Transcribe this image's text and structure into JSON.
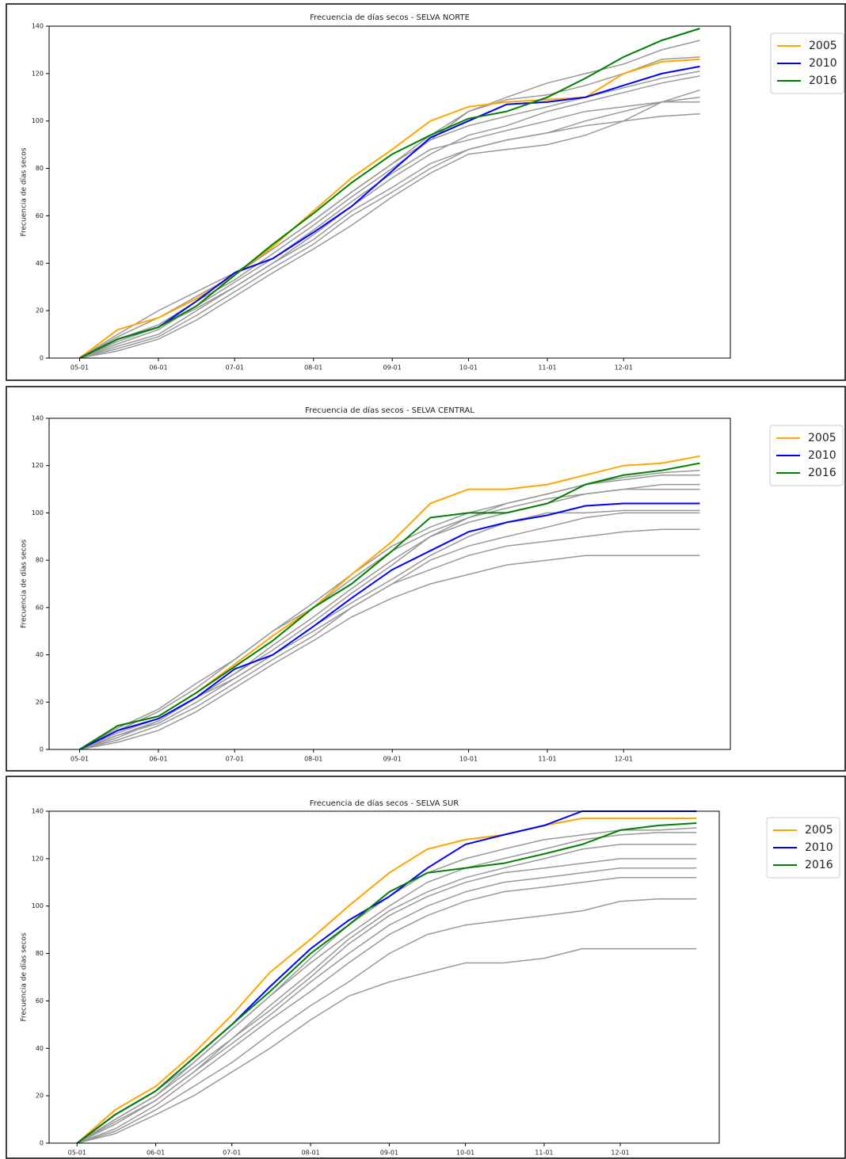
{
  "chart_data": [
    {
      "type": "line",
      "title": "Frecuencia de días secos - SELVA NORTE",
      "ylabel": "Frecuencia de días secos",
      "x": [
        0,
        15,
        31,
        46,
        61,
        76,
        92,
        107,
        123,
        138,
        153,
        168,
        184,
        199,
        214,
        229,
        244
      ],
      "xlim": [
        -12,
        256
      ],
      "xticks": [
        {
          "value": 0,
          "label": "05-01"
        },
        {
          "value": 31,
          "label": "06-01"
        },
        {
          "value": 61,
          "label": "07-01"
        },
        {
          "value": 92,
          "label": "08-01"
        },
        {
          "value": 123,
          "label": "09-01"
        },
        {
          "value": 153,
          "label": "10-01"
        },
        {
          "value": 184,
          "label": "11-01"
        },
        {
          "value": 214,
          "label": "12-01"
        }
      ],
      "ylim": [
        0,
        140
      ],
      "yticks": [
        0,
        20,
        40,
        60,
        80,
        100,
        120,
        140
      ],
      "grid": false,
      "legend": "right",
      "series": [
        {
          "color": "#999999",
          "values": [
            0,
            8,
            14,
            24,
            33,
            44,
            56,
            68,
            80,
            92,
            104,
            109,
            111,
            115,
            120,
            126,
            127
          ]
        },
        {
          "color": "#999999",
          "values": [
            0,
            5,
            10,
            20,
            30,
            40,
            50,
            62,
            72,
            82,
            88,
            92,
            95,
            98,
            100,
            102,
            103
          ]
        },
        {
          "color": "#999999",
          "values": [
            0,
            6,
            12,
            22,
            32,
            42,
            54,
            66,
            78,
            88,
            92,
            96,
            100,
            104,
            106,
            108,
            110
          ]
        },
        {
          "color": "#999999",
          "values": [
            0,
            10,
            20,
            28,
            36,
            46,
            58,
            70,
            82,
            94,
            104,
            110,
            116,
            120,
            124,
            130,
            134
          ]
        },
        {
          "color": "#999999",
          "values": [
            0,
            4,
            9,
            18,
            28,
            38,
            48,
            60,
            70,
            80,
            88,
            92,
            95,
            100,
            104,
            108,
            108
          ]
        },
        {
          "color": "#999999",
          "values": [
            0,
            7,
            13,
            21,
            30,
            40,
            52,
            64,
            76,
            86,
            94,
            98,
            104,
            108,
            112,
            116,
            119
          ]
        },
        {
          "color": "#999999",
          "values": [
            0,
            9,
            17,
            26,
            35,
            46,
            58,
            70,
            82,
            92,
            98,
            102,
            106,
            110,
            114,
            118,
            121
          ]
        },
        {
          "color": "#999999",
          "values": [
            0,
            3,
            8,
            16,
            26,
            36,
            46,
            56,
            68,
            78,
            86,
            88,
            90,
            94,
            100,
            108,
            113
          ]
        },
        {
          "name": "2005",
          "color": "#ffa500",
          "values": [
            0,
            12,
            17,
            25,
            35,
            47,
            62,
            76,
            88,
            100,
            106,
            108,
            109,
            110,
            120,
            125,
            126
          ]
        },
        {
          "name": "2010",
          "color": "#0000ff",
          "values": [
            0,
            8,
            13,
            24,
            36,
            42,
            53,
            64,
            79,
            93,
            100,
            107,
            108,
            110,
            115,
            120,
            123
          ]
        },
        {
          "name": "2016",
          "color": "#008000",
          "values": [
            0,
            8,
            13,
            22,
            35,
            48,
            61,
            74,
            86,
            94,
            101,
            104,
            110,
            118,
            127,
            134,
            139
          ]
        }
      ]
    },
    {
      "type": "line",
      "title": "Frecuencia de días secos - SELVA CENTRAL",
      "ylabel": "Frecuencia de días secos",
      "x": [
        0,
        15,
        31,
        46,
        61,
        76,
        92,
        107,
        123,
        138,
        153,
        168,
        184,
        199,
        214,
        229,
        244
      ],
      "xlim": [
        -12,
        256
      ],
      "xticks": [
        {
          "value": 0,
          "label": "05-01"
        },
        {
          "value": 31,
          "label": "06-01"
        },
        {
          "value": 61,
          "label": "07-01"
        },
        {
          "value": 92,
          "label": "08-01"
        },
        {
          "value": 123,
          "label": "09-01"
        },
        {
          "value": 153,
          "label": "10-01"
        },
        {
          "value": 184,
          "label": "11-01"
        },
        {
          "value": 214,
          "label": "12-01"
        }
      ],
      "ylim": [
        0,
        140
      ],
      "yticks": [
        0,
        20,
        40,
        60,
        80,
        100,
        120,
        140
      ],
      "grid": false,
      "legend": "right",
      "series": [
        {
          "color": "#999999",
          "values": [
            0,
            8,
            16,
            26,
            38,
            50,
            62,
            74,
            86,
            94,
            100,
            104,
            108,
            112,
            115,
            117,
            118
          ]
        },
        {
          "color": "#999999",
          "values": [
            0,
            6,
            12,
            22,
            32,
            42,
            54,
            66,
            78,
            90,
            98,
            104,
            108,
            112,
            114,
            116,
            116
          ]
        },
        {
          "color": "#999999",
          "values": [
            0,
            5,
            12,
            22,
            32,
            44,
            56,
            68,
            80,
            90,
            96,
            100,
            104,
            108,
            110,
            112,
            112
          ]
        },
        {
          "color": "#999999",
          "values": [
            0,
            9,
            17,
            28,
            38,
            50,
            60,
            72,
            84,
            92,
            98,
            102,
            106,
            108,
            110,
            110,
            110
          ]
        },
        {
          "color": "#999999",
          "values": [
            0,
            6,
            11,
            20,
            30,
            40,
            52,
            62,
            72,
            82,
            90,
            96,
            100,
            100,
            101,
            101,
            101
          ]
        },
        {
          "color": "#999999",
          "values": [
            0,
            4,
            10,
            18,
            28,
            38,
            48,
            60,
            70,
            80,
            86,
            90,
            94,
            98,
            100,
            100,
            100
          ]
        },
        {
          "color": "#999999",
          "values": [
            0,
            7,
            13,
            22,
            30,
            40,
            50,
            60,
            70,
            76,
            82,
            86,
            88,
            90,
            92,
            93,
            93
          ]
        },
        {
          "color": "#999999",
          "values": [
            0,
            3,
            8,
            16,
            26,
            36,
            46,
            56,
            64,
            70,
            74,
            78,
            80,
            82,
            82,
            82,
            82
          ]
        },
        {
          "name": "2005",
          "color": "#ffa500",
          "values": [
            0,
            10,
            14,
            24,
            36,
            48,
            60,
            74,
            88,
            104,
            110,
            110,
            112,
            116,
            120,
            121,
            124
          ]
        },
        {
          "name": "2010",
          "color": "#0000ff",
          "values": [
            0,
            8,
            13,
            22,
            34,
            40,
            52,
            64,
            76,
            84,
            92,
            96,
            99,
            103,
            104,
            104,
            104
          ]
        },
        {
          "name": "2016",
          "color": "#008000",
          "values": [
            0,
            10,
            14,
            24,
            35,
            46,
            60,
            70,
            84,
            98,
            100,
            100,
            104,
            112,
            116,
            118,
            121
          ]
        }
      ]
    },
    {
      "type": "line",
      "title": "Frecuencia de días secos - SELVA SUR",
      "ylabel": "Frecuencia de días secos",
      "x": [
        0,
        15,
        31,
        46,
        61,
        76,
        92,
        107,
        123,
        138,
        153,
        168,
        184,
        199,
        214,
        229,
        244
      ],
      "xlim": [
        -11,
        253
      ],
      "xticks": [
        {
          "value": 0,
          "label": "05-01"
        },
        {
          "value": 31,
          "label": "06-01"
        },
        {
          "value": 61,
          "label": "07-01"
        },
        {
          "value": 92,
          "label": "08-01"
        },
        {
          "value": 123,
          "label": "09-01"
        },
        {
          "value": 153,
          "label": "10-01"
        },
        {
          "value": 184,
          "label": "11-01"
        },
        {
          "value": 214,
          "label": "12-01"
        }
      ],
      "ylim": [
        0,
        140
      ],
      "yticks": [
        0,
        20,
        40,
        60,
        80,
        100,
        120,
        140
      ],
      "grid": false,
      "legend": "right",
      "series": [
        {
          "color": "#999999",
          "values": [
            0,
            10,
            20,
            34,
            48,
            62,
            78,
            92,
            104,
            114,
            120,
            124,
            128,
            130,
            132,
            132,
            133
          ]
        },
        {
          "color": "#999999",
          "values": [
            0,
            12,
            22,
            34,
            48,
            62,
            76,
            88,
            100,
            110,
            116,
            120,
            124,
            128,
            130,
            131,
            131
          ]
        },
        {
          "color": "#999999",
          "values": [
            0,
            8,
            18,
            30,
            44,
            58,
            72,
            86,
            98,
            106,
            112,
            116,
            120,
            124,
            126,
            126,
            126
          ]
        },
        {
          "color": "#999999",
          "values": [
            0,
            10,
            20,
            32,
            44,
            56,
            70,
            84,
            96,
            104,
            110,
            114,
            116,
            118,
            120,
            120,
            120
          ]
        },
        {
          "color": "#999999",
          "values": [
            0,
            9,
            18,
            30,
            42,
            54,
            68,
            80,
            92,
            100,
            106,
            110,
            112,
            114,
            116,
            116,
            116
          ]
        },
        {
          "color": "#999999",
          "values": [
            0,
            6,
            16,
            28,
            40,
            52,
            64,
            76,
            88,
            96,
            102,
            106,
            108,
            110,
            112,
            112,
            112
          ]
        },
        {
          "color": "#999999",
          "values": [
            0,
            5,
            14,
            24,
            34,
            46,
            58,
            68,
            80,
            88,
            92,
            94,
            96,
            98,
            102,
            103,
            103
          ]
        },
        {
          "color": "#999999",
          "values": [
            0,
            4,
            12,
            20,
            30,
            40,
            52,
            62,
            68,
            72,
            76,
            76,
            78,
            82,
            82,
            82,
            82
          ]
        },
        {
          "name": "2005",
          "color": "#ffa500",
          "values": [
            0,
            14,
            24,
            38,
            54,
            72,
            86,
            100,
            114,
            124,
            128,
            130,
            134,
            137,
            137,
            137,
            137
          ]
        },
        {
          "name": "2010",
          "color": "#0000ff",
          "values": [
            0,
            12,
            22,
            36,
            50,
            66,
            82,
            94,
            104,
            116,
            126,
            130,
            134,
            140,
            140,
            140,
            140
          ]
        },
        {
          "name": "2016",
          "color": "#008000",
          "values": [
            0,
            12,
            22,
            36,
            50,
            64,
            80,
            92,
            106,
            114,
            116,
            118,
            122,
            126,
            132,
            134,
            135
          ]
        }
      ]
    }
  ]
}
